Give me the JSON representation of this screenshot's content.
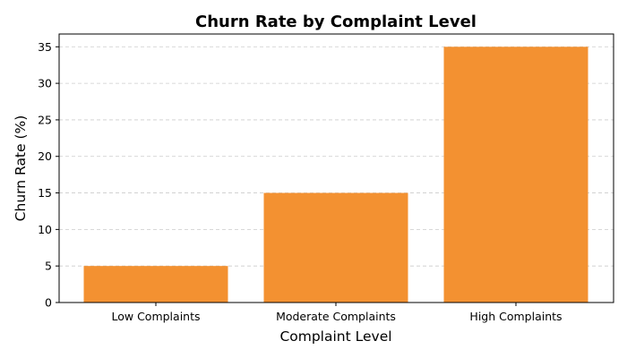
{
  "chart_data": {
    "type": "bar",
    "title": "Churn Rate by Complaint Level",
    "xlabel": "Complaint Level",
    "ylabel": "Churn Rate (%)",
    "categories": [
      "Low Complaints",
      "Moderate Complaints",
      "High Complaints"
    ],
    "values": [
      5,
      15,
      35
    ],
    "ylim": [
      0,
      36.75
    ],
    "yticks": [
      0,
      5,
      10,
      15,
      20,
      25,
      30,
      35
    ],
    "grid": "y-axis dashed",
    "bar_color": "#f39131"
  }
}
